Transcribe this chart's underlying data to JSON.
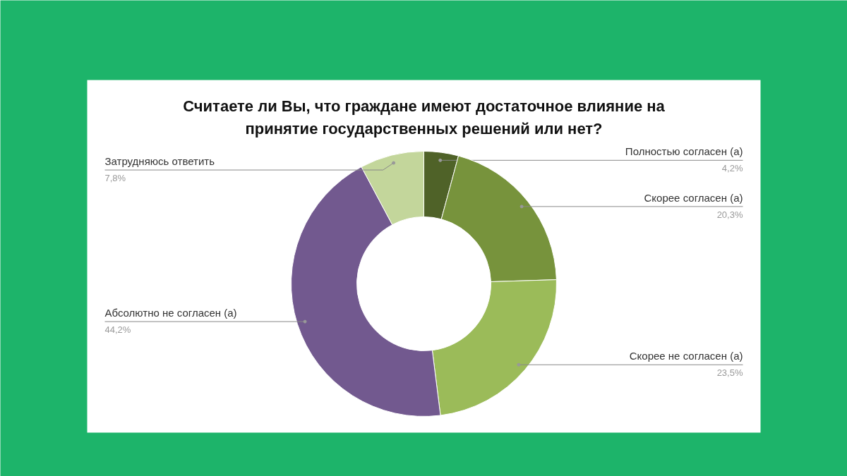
{
  "chart_data": {
    "type": "donut",
    "title": "Считаете ли Вы, что граждане имеют достаточное влияние на\nпринятие государственных решений или нет?",
    "categories": [
      "Полностью согласен (а)",
      "Скорее согласен (а)",
      "Скорее не согласен (а)",
      "Абсолютно не согласен (а)",
      "Затрудняюсь ответить"
    ],
    "values": [
      4.2,
      20.3,
      23.5,
      44.2,
      7.8
    ],
    "colors": [
      "#4f6228",
      "#77933c",
      "#9bbb59",
      "#72598f",
      "#c3d69b"
    ],
    "value_labels": [
      "4,2%",
      "20,3%",
      "23,5%",
      "44,2%",
      "7,8%"
    ]
  }
}
